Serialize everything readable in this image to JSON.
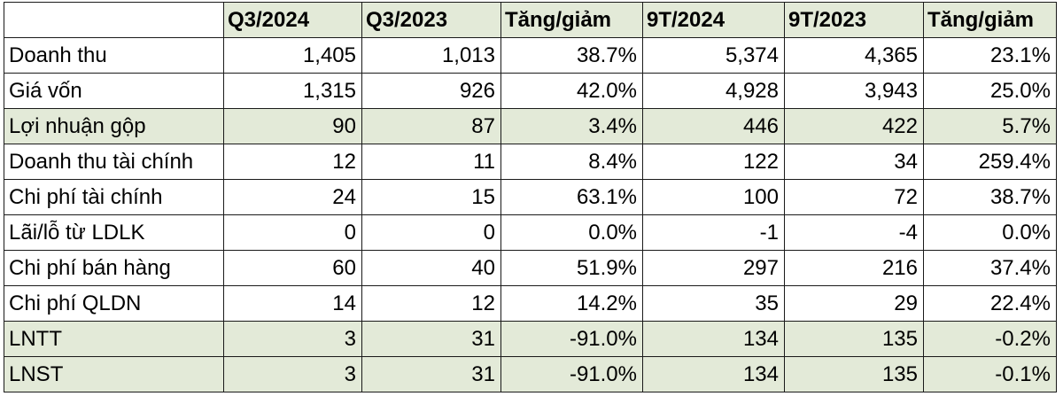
{
  "headers": [
    "",
    "Q3/2024",
    "Q3/2023",
    "Tăng/giảm",
    "9T/2024",
    "9T/2023",
    "Tăng/giảm"
  ],
  "rows": [
    {
      "label": "Doanh thu",
      "values": [
        "1,405",
        "1,013",
        "38.7%",
        "5,374",
        "4,365",
        "23.1%"
      ],
      "highlight": false
    },
    {
      "label": "Giá vốn",
      "values": [
        "1,315",
        "926",
        "42.0%",
        "4,928",
        "3,943",
        "25.0%"
      ],
      "highlight": false
    },
    {
      "label": "Lợi nhuận gộp",
      "values": [
        "90",
        "87",
        "3.4%",
        "446",
        "422",
        "5.7%"
      ],
      "highlight": true
    },
    {
      "label": "Doanh thu tài chính",
      "values": [
        "12",
        "11",
        "8.4%",
        "122",
        "34",
        "259.4%"
      ],
      "highlight": false
    },
    {
      "label": "Chi phí tài chính",
      "values": [
        "24",
        "15",
        "63.1%",
        "100",
        "72",
        "38.7%"
      ],
      "highlight": false
    },
    {
      "label": "Lãi/lỗ từ LDLK",
      "values": [
        "0",
        "0",
        "0.0%",
        "-1",
        "-4",
        "0.0%"
      ],
      "highlight": false
    },
    {
      "label": "Chi phí bán hàng",
      "values": [
        "60",
        "40",
        "51.9%",
        "297",
        "216",
        "37.4%"
      ],
      "highlight": false
    },
    {
      "label": "Chi phí QLDN",
      "values": [
        "14",
        "12",
        "14.2%",
        "35",
        "29",
        "22.4%"
      ],
      "highlight": false
    },
    {
      "label": "LNTT",
      "values": [
        "3",
        "31",
        "-91.0%",
        "134",
        "135",
        "-0.2%"
      ],
      "highlight": true
    },
    {
      "label": "LNST",
      "values": [
        "3",
        "31",
        "-91.0%",
        "134",
        "135",
        "-0.1%"
      ],
      "highlight": true
    }
  ],
  "colors": {
    "highlight": "#e3ead8",
    "border": "#1a1a1a"
  }
}
